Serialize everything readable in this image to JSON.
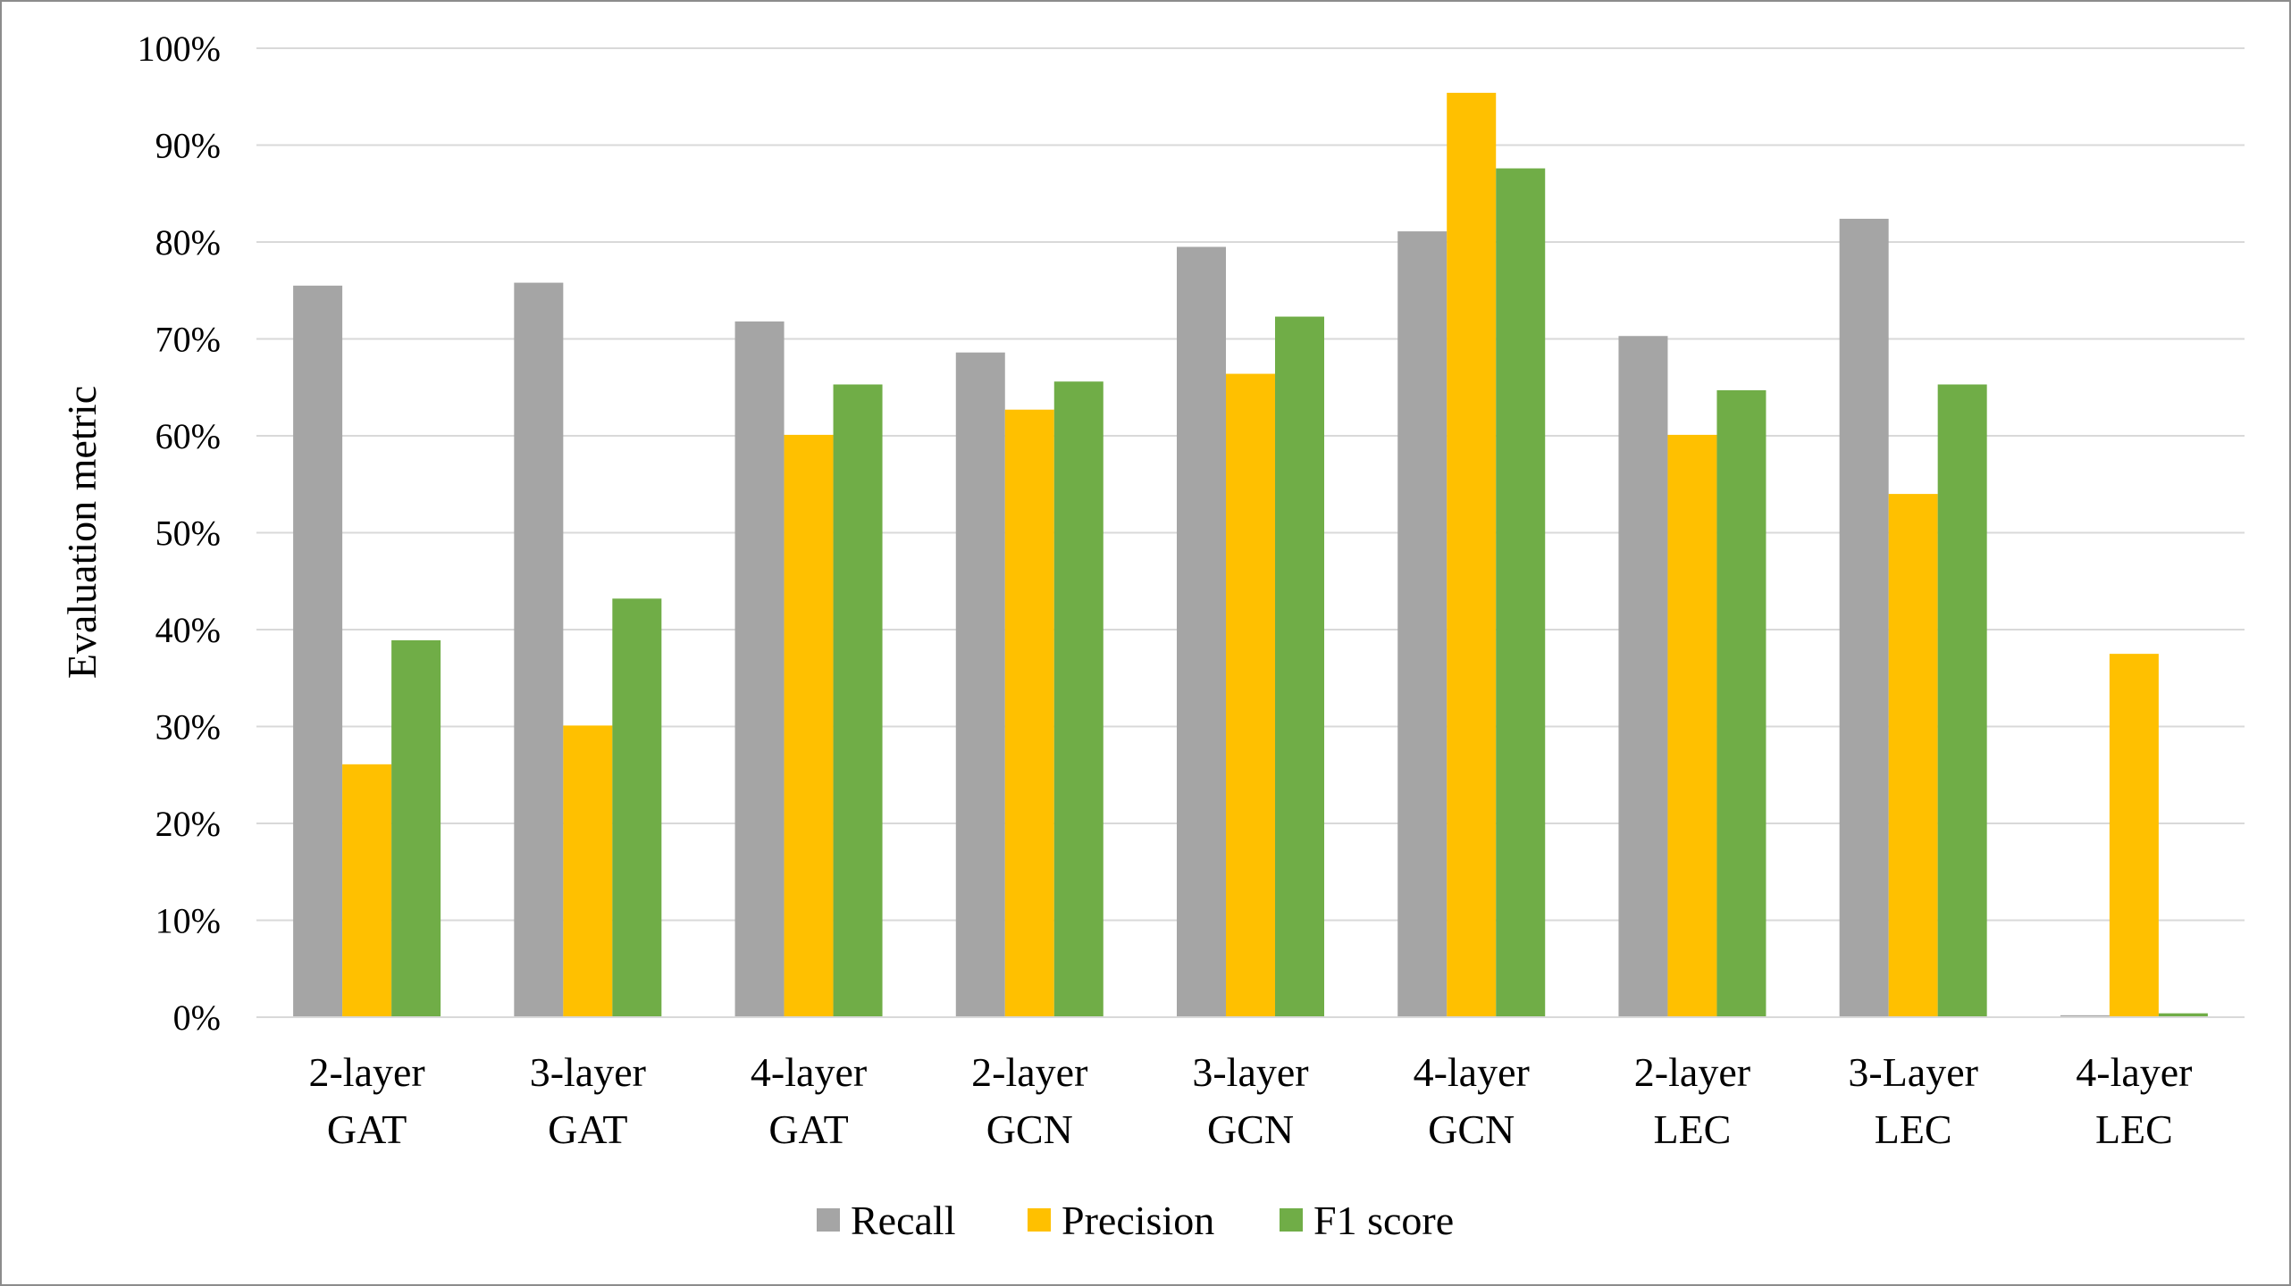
{
  "chart_data": {
    "type": "bar",
    "title": "",
    "xlabel": "",
    "ylabel": "Evaluation metric",
    "ylim": [
      0,
      100
    ],
    "y_ticks": [
      "0%",
      "10%",
      "20%",
      "30%",
      "40%",
      "50%",
      "60%",
      "70%",
      "80%",
      "90%",
      "100%"
    ],
    "grid": true,
    "legend_position": "bottom",
    "categories": [
      {
        "line1": "2-layer",
        "line2": "GAT"
      },
      {
        "line1": "3-layer",
        "line2": "GAT"
      },
      {
        "line1": "4-layer",
        "line2": "GAT"
      },
      {
        "line1": "2-layer",
        "line2": "GCN"
      },
      {
        "line1": "3-layer",
        "line2": "GCN"
      },
      {
        "line1": "4-layer",
        "line2": "GCN"
      },
      {
        "line1": "2-layer",
        "line2": "LEC"
      },
      {
        "line1": "3-Layer",
        "line2": "LEC"
      },
      {
        "line1": "4-layer",
        "line2": "LEC"
      }
    ],
    "series": [
      {
        "name": "Recall",
        "color": "#a5a5a5",
        "values": [
          75.5,
          75.8,
          71.8,
          68.6,
          79.5,
          81.1,
          70.3,
          82.4,
          0.2
        ]
      },
      {
        "name": "Precision",
        "color": "#ffc000",
        "values": [
          26.1,
          30.1,
          60.1,
          62.7,
          66.4,
          95.4,
          60.1,
          54.0,
          37.5
        ]
      },
      {
        "name": "F1 score",
        "color": "#70ad47",
        "values": [
          38.9,
          43.2,
          65.3,
          65.6,
          72.3,
          87.6,
          64.7,
          65.3,
          0.4
        ]
      }
    ]
  }
}
